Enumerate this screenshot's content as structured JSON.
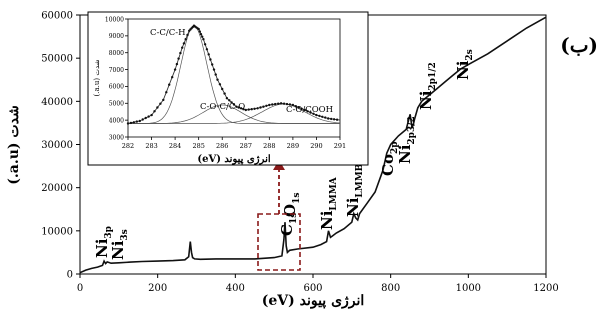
{
  "panel_label": "(ب)",
  "chart_data": [
    {
      "type": "line",
      "xlabel": "انرژی پیوند (eV)",
      "ylabel": "شدت (a.u.)",
      "xlim": [
        0,
        1200
      ],
      "ylim": [
        0,
        60000
      ],
      "x_ticks": [
        0,
        200,
        400,
        600,
        800,
        1000,
        1200
      ],
      "y_ticks": [
        0,
        10000,
        20000,
        30000,
        40000,
        50000,
        60000
      ],
      "grid": false,
      "series": [
        {
          "x": [
            0,
            15,
            30,
            45,
            58,
            62,
            66,
            70,
            80,
            100,
            130,
            160,
            200,
            240,
            270,
            280,
            284,
            287,
            290,
            295,
            310,
            350,
            400,
            450,
            500,
            520,
            525,
            528,
            531,
            534,
            540,
            560,
            600,
            620,
            635,
            640,
            645,
            650,
            660,
            680,
            700,
            705,
            710,
            715,
            720,
            740,
            760,
            780,
            790,
            800,
            820,
            840,
            850,
            855,
            858,
            862,
            870,
            880,
            900,
            920,
            940,
            960,
            980,
            1000,
            1050,
            1100,
            1150,
            1200
          ],
          "y": [
            300,
            900,
            1300,
            1600,
            2000,
            3000,
            2400,
            2800,
            2500,
            2600,
            2750,
            2900,
            3000,
            3100,
            3300,
            4000,
            7500,
            5000,
            3800,
            3500,
            3400,
            3500,
            3500,
            3500,
            3800,
            4200,
            8000,
            12000,
            6500,
            5000,
            5500,
            5800,
            6200,
            6800,
            7500,
            10000,
            8500,
            8800,
            9500,
            10500,
            12000,
            14000,
            13000,
            12500,
            14000,
            16500,
            19000,
            24000,
            28000,
            30000,
            32000,
            33500,
            37000,
            34000,
            34500,
            36000,
            38500,
            40000,
            41500,
            43000,
            44500,
            46000,
            47500,
            48500,
            51000,
            54000,
            57000,
            59500
          ]
        }
      ],
      "annotations": [
        {
          "text": "Ni",
          "sub": "3p",
          "x": 58
        },
        {
          "text": "Ni",
          "sub": "3s",
          "x": 100
        },
        {
          "text": "C",
          "sub": "1s",
          "x": 285
        },
        {
          "text": "O",
          "sub": "1s",
          "x": 531
        },
        {
          "text": "Ni",
          "sub": "LMMA",
          "x": 640
        },
        {
          "text": "Ni",
          "sub": "LMMB",
          "x": 710
        },
        {
          "text": "Co",
          "sub": "2p",
          "x": 780
        },
        {
          "text": "Ni",
          "sub": "2p3/2",
          "x": 855
        },
        {
          "text": "Ni",
          "sub": "2p1/2",
          "x": 875
        },
        {
          "text": "Ni",
          "sub": "2s",
          "x": 1008
        }
      ]
    },
    {
      "type": "line",
      "inset": true,
      "xlabel": "انرژی پیوند (eV)",
      "ylabel": "شدت (a.u.)",
      "xlim": [
        282,
        291
      ],
      "ylim": [
        3000,
        10000
      ],
      "x_ticks": [
        282,
        283,
        284,
        285,
        286,
        287,
        288,
        289,
        290,
        291
      ],
      "y_ticks": [
        3000,
        4000,
        5000,
        6000,
        7000,
        8000,
        9000,
        10000
      ],
      "series": [
        {
          "x": [
            282.0,
            282.5,
            283.0,
            283.5,
            284.0,
            284.3,
            284.6,
            284.8,
            285.0,
            285.2,
            285.5,
            285.8,
            286.2,
            286.6,
            287.0,
            287.5,
            288.0,
            288.5,
            289.0,
            289.5,
            290.0,
            290.5,
            291.0
          ],
          "y": [
            3800,
            3950,
            4300,
            5200,
            7000,
            8300,
            9300,
            9600,
            9400,
            8800,
            7600,
            6400,
            5300,
            4800,
            4600,
            4700,
            4900,
            5000,
            4900,
            4600,
            4300,
            4100,
            4000
          ]
        }
      ],
      "components": [
        {
          "label": "C-C/C-H",
          "center": 284.8,
          "height": 9600
        },
        {
          "label": "C-O-C/C-O",
          "center": 286.0,
          "height": 4900
        },
        {
          "label": "C-O/COOH",
          "center": 288.6,
          "height": 4950
        }
      ]
    }
  ]
}
